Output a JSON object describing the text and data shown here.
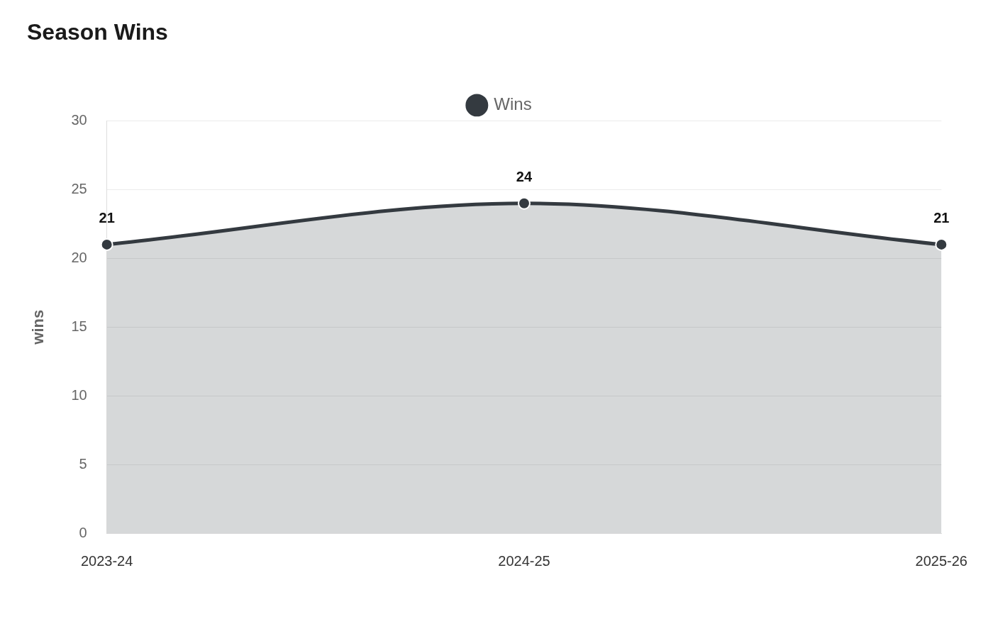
{
  "chart_data": {
    "type": "area",
    "title": "Season Wins",
    "ylabel": "wins",
    "categories": [
      "2023-24",
      "2024-25",
      "2025-26"
    ],
    "series": [
      {
        "name": "Wins",
        "color": "#343a40",
        "values": [
          21,
          24,
          21
        ]
      }
    ],
    "ylim": [
      0,
      30
    ],
    "yticks": [
      0,
      5,
      10,
      15,
      20,
      25,
      30
    ],
    "grid": "y",
    "legend": "top",
    "marker": "circle",
    "data_labels": true
  }
}
